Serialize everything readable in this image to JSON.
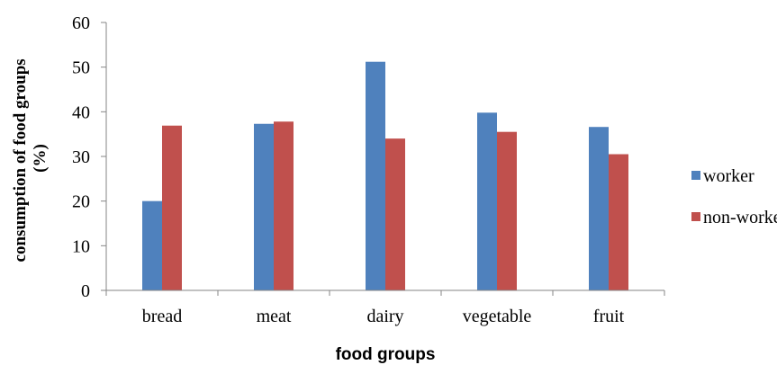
{
  "chart_data": {
    "type": "bar",
    "categories": [
      "bread",
      "meat",
      "dairy",
      "vegetable",
      "fruit"
    ],
    "series": [
      {
        "name": "worker",
        "values": [
          20,
          37.3,
          51.2,
          39.8,
          36.6
        ],
        "color": "#4f81bd"
      },
      {
        "name": "non-worker",
        "values": [
          36.9,
          37.8,
          34,
          35.5,
          30.5
        ],
        "color": "#c0504d"
      }
    ],
    "xlabel": "food groups",
    "ylabel_lines": [
      "consumption of food groups",
      "(%)"
    ],
    "ylim": [
      0,
      60
    ],
    "yticks": [
      "0",
      "10",
      "20",
      "30",
      "40",
      "50",
      "60"
    ],
    "grid": false,
    "legend_position": "right"
  }
}
